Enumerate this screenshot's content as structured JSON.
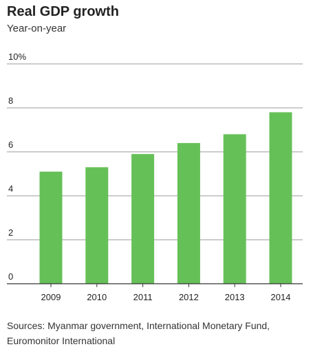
{
  "title": "Real GDP growth",
  "subtitle": "Year-on-year",
  "source_line1": "Sources: Myanmar government, International Monetary Fund,",
  "source_line2": "Euromonitor International",
  "colors": {
    "bar": "#66c058",
    "grid": "#999999",
    "axis": "#333333",
    "text": "#222222"
  },
  "chart_data": {
    "type": "bar",
    "title": "Real GDP growth",
    "subtitle": "Year-on-year",
    "categories": [
      "2009",
      "2010",
      "2011",
      "2012",
      "2013",
      "2014"
    ],
    "values": [
      5.1,
      5.3,
      5.9,
      6.4,
      6.8,
      7.8
    ],
    "xlabel": "",
    "ylabel": "",
    "ylim": [
      0,
      10
    ],
    "yticks": [
      0,
      2,
      4,
      6,
      8,
      10
    ],
    "ytick_labels": [
      "0",
      "2",
      "4",
      "6",
      "8",
      "10%"
    ],
    "grid": true,
    "legend": "none"
  }
}
